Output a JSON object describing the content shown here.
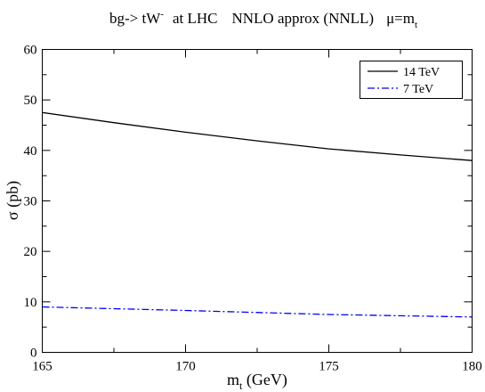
{
  "chart_data": {
    "type": "line",
    "title": {
      "process": "bg-> tW",
      "process_sup": "-",
      "collider": "at LHC",
      "order": "NNLO approx (NNLL)",
      "scale": "μ=m",
      "scale_sub": "t"
    },
    "xlabel": {
      "main": "m",
      "sub": "t",
      "rest": " (GeV)"
    },
    "ylabel": "σ  (pb)",
    "xlim": [
      165,
      180
    ],
    "ylim": [
      0,
      60
    ],
    "xticks": [
      165,
      170,
      175,
      180
    ],
    "yticks": [
      0,
      10,
      20,
      30,
      40,
      50,
      60
    ],
    "grid": false,
    "legend_position": "top-right",
    "series": [
      {
        "name": "14 TeV",
        "color": "#000000",
        "dash": "solid",
        "x": [
          165,
          167.5,
          170,
          172.5,
          175,
          177.5,
          180
        ],
        "y": [
          47.5,
          45.5,
          43.6,
          41.9,
          40.3,
          39.1,
          38.0
        ]
      },
      {
        "name": "7 TeV",
        "color": "#0000ff",
        "dash": "dashdot",
        "x": [
          165,
          170,
          175,
          180
        ],
        "y": [
          9.0,
          8.3,
          7.5,
          7.0
        ]
      }
    ]
  }
}
